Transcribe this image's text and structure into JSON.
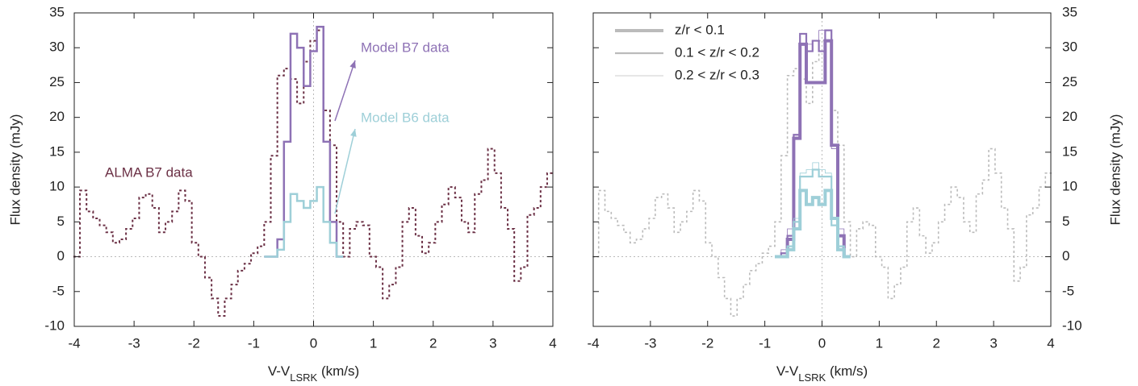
{
  "chart_data": [
    {
      "type": "line",
      "step": true,
      "ylabel": "Flux density (mJy)",
      "xlabel": [
        "V-V",
        "LSRK",
        " (km/s)"
      ],
      "xlim": [
        -4,
        4
      ],
      "ylim": [
        -10,
        35
      ],
      "xticks": [
        -4,
        -3,
        -2,
        -1,
        0,
        1,
        2,
        3,
        4
      ],
      "yticks": [
        -10,
        -5,
        0,
        5,
        10,
        15,
        20,
        25,
        30,
        35
      ],
      "zero_lines": true,
      "y_side": "left",
      "series": [
        {
          "name": "ALMA B7 data",
          "color": "#6b3045",
          "dash": true,
          "width": 2,
          "x": [
            -3.96,
            -3.85,
            -3.74,
            -3.63,
            -3.52,
            -3.41,
            -3.3,
            -3.19,
            -3.08,
            -2.97,
            -2.86,
            -2.75,
            -2.64,
            -2.53,
            -2.42,
            -2.31,
            -2.2,
            -2.09,
            -1.98,
            -1.87,
            -1.76,
            -1.65,
            -1.54,
            -1.43,
            -1.32,
            -1.21,
            -1.1,
            -0.99,
            -0.88,
            -0.77,
            -0.66,
            -0.55,
            -0.44,
            -0.33,
            -0.22,
            -0.11,
            0,
            0.11,
            0.22,
            0.33,
            0.44,
            0.55,
            0.66,
            0.77,
            0.88,
            0.99,
            1.1,
            1.21,
            1.32,
            1.43,
            1.54,
            1.65,
            1.76,
            1.87,
            1.98,
            2.09,
            2.2,
            2.31,
            2.42,
            2.53,
            2.64,
            2.75,
            2.86,
            2.97,
            3.08,
            3.19,
            3.3,
            3.41,
            3.52,
            3.63,
            3.74,
            3.85,
            3.96
          ],
          "values": [
            0,
            9.5,
            6.5,
            5.5,
            4.5,
            3.5,
            2,
            2.5,
            4,
            5.5,
            8.5,
            9,
            7,
            3.5,
            5,
            6.5,
            9.5,
            8,
            2,
            0,
            -3,
            -6,
            -8.5,
            -6,
            -4,
            -2,
            -1,
            0.5,
            1.5,
            5,
            14.5,
            26,
            27,
            25.5,
            22,
            28,
            31,
            32.5,
            21,
            16,
            5,
            0,
            4,
            5,
            4.5,
            0,
            -1.5,
            -6,
            -4,
            -1.5,
            5,
            7,
            3,
            0.5,
            2,
            5,
            7.5,
            10,
            8.5,
            5,
            3.5,
            9,
            11,
            15.5,
            12,
            7,
            4,
            -3.5,
            -1.5,
            6,
            7,
            10,
            12
          ]
        },
        {
          "name": "Model B7 data",
          "color": "#8e72b5",
          "width": 2.5,
          "x": [
            -0.77,
            -0.66,
            -0.55,
            -0.44,
            -0.33,
            -0.22,
            -0.11,
            0,
            0.11,
            0.22,
            0.33,
            0.44
          ],
          "values": [
            0,
            0,
            2.5,
            16.5,
            32,
            30,
            24.5,
            29.5,
            33,
            16.5,
            5,
            0
          ]
        },
        {
          "name": "Model B6 data",
          "color": "#9ecfd8",
          "width": 2.5,
          "x": [
            -0.77,
            -0.66,
            -0.55,
            -0.44,
            -0.33,
            -0.22,
            -0.11,
            0,
            0.11,
            0.22,
            0.33,
            0.44
          ],
          "values": [
            0,
            0,
            1,
            5,
            9,
            8,
            7,
            8,
            10,
            5,
            2,
            0
          ]
        }
      ]
    },
    {
      "type": "line",
      "step": true,
      "ylabel": "Flux density (mJy)",
      "xlabel": [
        "V-V",
        "LSRK",
        " (km/s)"
      ],
      "xlim": [
        -4,
        4
      ],
      "ylim": [
        -10,
        35
      ],
      "xticks": [
        -4,
        -3,
        -2,
        -1,
        0,
        1,
        2,
        3,
        4
      ],
      "yticks": [
        -10,
        -5,
        0,
        5,
        10,
        15,
        20,
        25,
        30,
        35
      ],
      "zero_lines": true,
      "y_side": "right",
      "legend": [
        {
          "name": "z/r < 0.1",
          "width": 4
        },
        {
          "name": "0.1 < z/r < 0.2",
          "width": 2.2
        },
        {
          "name": "0.2 < z/r < 0.3",
          "width": 0.8
        }
      ],
      "legend_color": "#bbbbbb",
      "series": [
        {
          "color": "#bbbbbb",
          "dash": true,
          "width": 1.6,
          "x": [
            -3.96,
            -3.85,
            -3.74,
            -3.63,
            -3.52,
            -3.41,
            -3.3,
            -3.19,
            -3.08,
            -2.97,
            -2.86,
            -2.75,
            -2.64,
            -2.53,
            -2.42,
            -2.31,
            -2.2,
            -2.09,
            -1.98,
            -1.87,
            -1.76,
            -1.65,
            -1.54,
            -1.43,
            -1.32,
            -1.21,
            -1.1,
            -0.99,
            -0.88,
            -0.77,
            -0.66,
            -0.55,
            -0.44,
            -0.33,
            -0.22,
            -0.11,
            0,
            0.11,
            0.22,
            0.33,
            0.44,
            0.55,
            0.66,
            0.77,
            0.88,
            0.99,
            1.1,
            1.21,
            1.32,
            1.43,
            1.54,
            1.65,
            1.76,
            1.87,
            1.98,
            2.09,
            2.2,
            2.31,
            2.42,
            2.53,
            2.64,
            2.75,
            2.86,
            2.97,
            3.08,
            3.19,
            3.3,
            3.41,
            3.52,
            3.63,
            3.74,
            3.85,
            3.96
          ],
          "values": [
            0,
            9.5,
            6.5,
            5.5,
            4.5,
            3.5,
            2,
            2.5,
            4,
            5.5,
            8.5,
            9,
            7,
            3.5,
            5,
            6.5,
            9.5,
            8,
            2,
            0,
            -3,
            -6,
            -8.5,
            -6,
            -4,
            -2,
            -1,
            0.5,
            1.5,
            5,
            14.5,
            26,
            27,
            25.5,
            22,
            28,
            31,
            32.5,
            21,
            16,
            5,
            0,
            4,
            5,
            4.5,
            0,
            -1.5,
            -6,
            -4,
            -1.5,
            5,
            7,
            3,
            0.5,
            2,
            5,
            7.5,
            10,
            8.5,
            5,
            3.5,
            9,
            11,
            15.5,
            12,
            7,
            4,
            -3.5,
            -1.5,
            6,
            7,
            10,
            12
          ]
        },
        {
          "color": "#8e72b5",
          "width": 4,
          "x": [
            -0.77,
            -0.66,
            -0.55,
            -0.44,
            -0.33,
            -0.22,
            -0.11,
            0,
            0.11,
            0.22,
            0.33,
            0.44
          ],
          "values": [
            0,
            0,
            2.5,
            17,
            30.5,
            25,
            25,
            25,
            31,
            16,
            3,
            0
          ]
        },
        {
          "color": "#8e72b5",
          "width": 2.2,
          "x": [
            -0.77,
            -0.66,
            -0.55,
            -0.44,
            -0.33,
            -0.22,
            -0.11,
            0,
            0.11,
            0.22,
            0.33,
            0.44
          ],
          "values": [
            0,
            0.5,
            3,
            17.5,
            32,
            29.5,
            31,
            29.5,
            32.5,
            16,
            3,
            0
          ]
        },
        {
          "color": "#8e72b5",
          "width": 0.8,
          "x": [
            -0.77,
            -0.66,
            -0.55,
            -0.44,
            -0.33,
            -0.22,
            -0.11,
            0,
            0.11,
            0.22,
            0.33,
            0.44
          ],
          "values": [
            0,
            1,
            4,
            17,
            32,
            30.5,
            31,
            32.5,
            32.5,
            15.5,
            4,
            0
          ]
        },
        {
          "color": "#9ecfd8",
          "width": 4,
          "x": [
            -0.77,
            -0.66,
            -0.55,
            -0.44,
            -0.33,
            -0.22,
            -0.11,
            0,
            0.11,
            0.22,
            0.33,
            0.44
          ],
          "values": [
            0,
            0,
            1,
            4,
            9.5,
            7.5,
            8.5,
            7.5,
            9.5,
            5.5,
            1,
            0
          ]
        },
        {
          "color": "#9ecfd8",
          "width": 2.2,
          "x": [
            -0.77,
            -0.66,
            -0.55,
            -0.44,
            -0.33,
            -0.22,
            -0.11,
            0,
            0.11,
            0.22,
            0.33,
            0.44
          ],
          "values": [
            0,
            0,
            1.5,
            5,
            11.5,
            11.5,
            12.5,
            11.5,
            11.5,
            4.5,
            1.5,
            0
          ]
        },
        {
          "color": "#9ecfd8",
          "width": 0.8,
          "x": [
            -0.77,
            -0.66,
            -0.55,
            -0.44,
            -0.33,
            -0.22,
            -0.11,
            0,
            0.11,
            0.22,
            0.33,
            0.44
          ],
          "values": [
            0,
            0,
            1.5,
            5.5,
            12,
            12.5,
            13.5,
            12.5,
            12,
            4.5,
            1,
            0
          ]
        }
      ]
    }
  ]
}
